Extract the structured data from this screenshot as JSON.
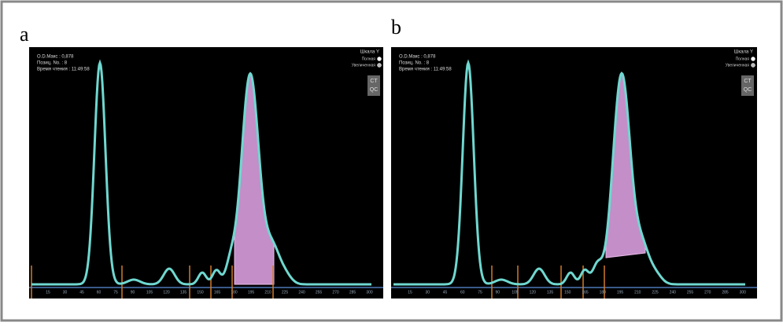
{
  "panels": [
    {
      "label": "a",
      "info": [
        "O.D.Макс : 0,878",
        "Позиц. No. : 8",
        "Время чтения : 11:49:58"
      ],
      "scale_title": "Шкала Y",
      "scale_options": [
        "Полная",
        "Увеличенная"
      ],
      "buttons": [
        "CT",
        "QC"
      ],
      "x_labels": [
        "15",
        "30",
        "45",
        "60",
        "75",
        "90",
        "105",
        "120",
        "135",
        "150",
        "165",
        "180",
        "195",
        "210",
        "225",
        "240",
        "255",
        "270",
        "285",
        "300"
      ]
    },
    {
      "label": "b",
      "info": [
        "O.D.Макс : 0,878",
        "Позиц. No. : 8",
        "Время чтения : 11:49:58"
      ],
      "scale_title": "Шкала Y",
      "scale_options": [
        "Полная",
        "Увеличенная"
      ],
      "buttons": [
        "CT",
        "QC"
      ],
      "x_labels": [
        "15",
        "30",
        "45",
        "60",
        "75",
        "90",
        "105",
        "120",
        "135",
        "150",
        "165",
        "180",
        "195",
        "210",
        "225",
        "240",
        "255",
        "270",
        "285",
        "300"
      ]
    }
  ]
}
